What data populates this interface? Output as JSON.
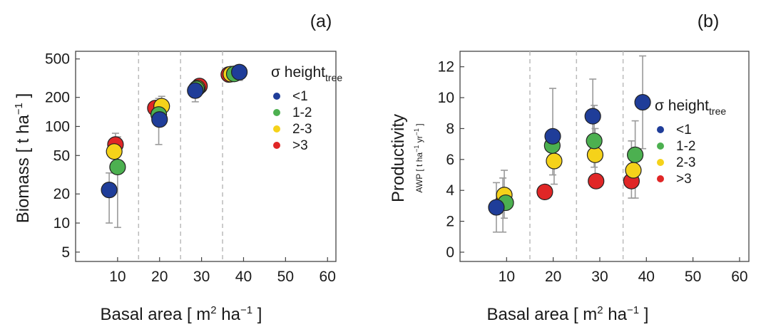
{
  "chart_data": [
    {
      "type": "scatter",
      "panel_label": "(a)",
      "xlabel": {
        "main": "Basal area [ m",
        "sup1": "2",
        "mid": " ha",
        "sup2": "−1",
        "end": " ]"
      },
      "ylabel": {
        "main": "Biomass [ t ha",
        "sup": "−1",
        "end": " ]"
      },
      "xlim": [
        0,
        62
      ],
      "ylim": [
        4,
        600
      ],
      "yscale": "log",
      "xticks": [
        10,
        20,
        30,
        40,
        50,
        60
      ],
      "xtick_labels": [
        "10",
        "20",
        "30",
        "40",
        "50",
        "60"
      ],
      "yticks": [
        5,
        10,
        20,
        50,
        100,
        200,
        500
      ],
      "ytick_labels": [
        "5",
        "10",
        "20",
        "50",
        "100",
        "200",
        "500"
      ],
      "vlines": [
        15,
        25,
        35
      ],
      "grid": false,
      "legend": {
        "placement": "right",
        "title_main": "σ height",
        "title_sub": "tree",
        "entries": [
          {
            "label": "<1",
            "color": "#1f3d99"
          },
          {
            "label": "1-2",
            "color": "#4cb050"
          },
          {
            "label": "2-3",
            "color": "#f5d21a"
          },
          {
            "label": ">3",
            "color": "#e02626"
          }
        ]
      },
      "series": [
        {
          "color": "#e02626",
          "points": [
            {
              "x": 9.5,
              "y": 65,
              "ylo": 55,
              "yhi": 85
            },
            {
              "x": 19.0,
              "y": 155
            },
            {
              "x": 29.5,
              "y": 262
            },
            {
              "x": 36.5,
              "y": 345
            }
          ]
        },
        {
          "color": "#f5d21a",
          "points": [
            {
              "x": 9.2,
              "y": 55
            },
            {
              "x": 20.5,
              "y": 162,
              "ylo": 125,
              "yhi": 205
            },
            {
              "x": 29.0,
              "y": 250
            },
            {
              "x": 37.0,
              "y": 348
            }
          ]
        },
        {
          "color": "#4cb050",
          "points": [
            {
              "x": 10.0,
              "y": 38,
              "ylo": 9,
              "yhi": 78
            },
            {
              "x": 19.8,
              "y": 133,
              "ylo": 65,
              "yhi": 195
            },
            {
              "x": 28.8,
              "y": 245
            },
            {
              "x": 37.8,
              "y": 350
            }
          ]
        },
        {
          "color": "#1f3d99",
          "points": [
            {
              "x": 8.0,
              "y": 22,
              "ylo": 10,
              "yhi": 33
            },
            {
              "x": 20.0,
              "y": 118
            },
            {
              "x": 28.5,
              "y": 235,
              "ylo": 180,
              "yhi": 275
            },
            {
              "x": 39.0,
              "y": 365,
              "ylo": 300,
              "yhi": 400
            }
          ]
        }
      ]
    },
    {
      "type": "scatter",
      "panel_label": "(b)",
      "xlabel": {
        "main": "Basal area [ m",
        "sup1": "2",
        "mid": " ha",
        "sup2": "−1",
        "end": " ]"
      },
      "ylabel": {
        "main": "Productivity",
        "sub_main": "AWP [ t ha",
        "sub_sup1": "−1",
        "sub_mid": " yr",
        "sub_sup2": "−1",
        "sub_end": " ]"
      },
      "xlim": [
        0,
        62
      ],
      "ylim": [
        -0.6,
        13
      ],
      "yscale": "linear",
      "xticks": [
        10,
        20,
        30,
        40,
        50,
        60
      ],
      "xtick_labels": [
        "10",
        "20",
        "30",
        "40",
        "50",
        "60"
      ],
      "yticks": [
        0,
        2,
        4,
        6,
        8,
        10,
        12
      ],
      "ytick_labels": [
        "0",
        "2",
        "4",
        "6",
        "8",
        "10",
        "12"
      ],
      "vlines": [
        15,
        25,
        35
      ],
      "grid": false,
      "legend": {
        "placement": "right",
        "title_main": "σ height",
        "title_sub": "tree",
        "entries": [
          {
            "label": "<1",
            "color": "#1f3d99"
          },
          {
            "label": "1-2",
            "color": "#4cb050"
          },
          {
            "label": "2-3",
            "color": "#f5d21a"
          },
          {
            "label": ">3",
            "color": "#e02626"
          }
        ]
      },
      "series": [
        {
          "color": "#e02626",
          "points": [
            {
              "x": 9.2,
              "y": 3.2,
              "ylo": 1.3,
              "yhi": 4.8
            },
            {
              "x": 18.2,
              "y": 3.9
            },
            {
              "x": 29.2,
              "y": 4.6
            },
            {
              "x": 36.8,
              "y": 4.6,
              "ylo": 3.5,
              "yhi": 7.2
            }
          ]
        },
        {
          "color": "#f5d21a",
          "points": [
            {
              "x": 9.5,
              "y": 3.7,
              "ylo": 2.2,
              "yhi": 5.3
            },
            {
              "x": 20.2,
              "y": 5.9,
              "ylo": 4.4,
              "yhi": 7.6
            },
            {
              "x": 29.0,
              "y": 6.3,
              "ylo": 4.5,
              "yhi": 8.0
            },
            {
              "x": 37.2,
              "y": 5.3
            }
          ]
        },
        {
          "color": "#4cb050",
          "points": [
            {
              "x": 9.8,
              "y": 3.2
            },
            {
              "x": 19.8,
              "y": 6.9
            },
            {
              "x": 28.8,
              "y": 7.2,
              "ylo": 5.5,
              "yhi": 9.5
            },
            {
              "x": 37.6,
              "y": 6.3,
              "ylo": 3.5,
              "yhi": 8.5
            }
          ]
        },
        {
          "color": "#1f3d99",
          "points": [
            {
              "x": 7.8,
              "y": 2.9,
              "ylo": 1.3,
              "yhi": 4.5
            },
            {
              "x": 19.9,
              "y": 7.5,
              "ylo": 5.0,
              "yhi": 10.6
            },
            {
              "x": 28.5,
              "y": 8.8,
              "ylo": 6.5,
              "yhi": 11.2
            },
            {
              "x": 39.2,
              "y": 9.7,
              "ylo": 6.7,
              "yhi": 12.7
            }
          ]
        }
      ]
    }
  ]
}
